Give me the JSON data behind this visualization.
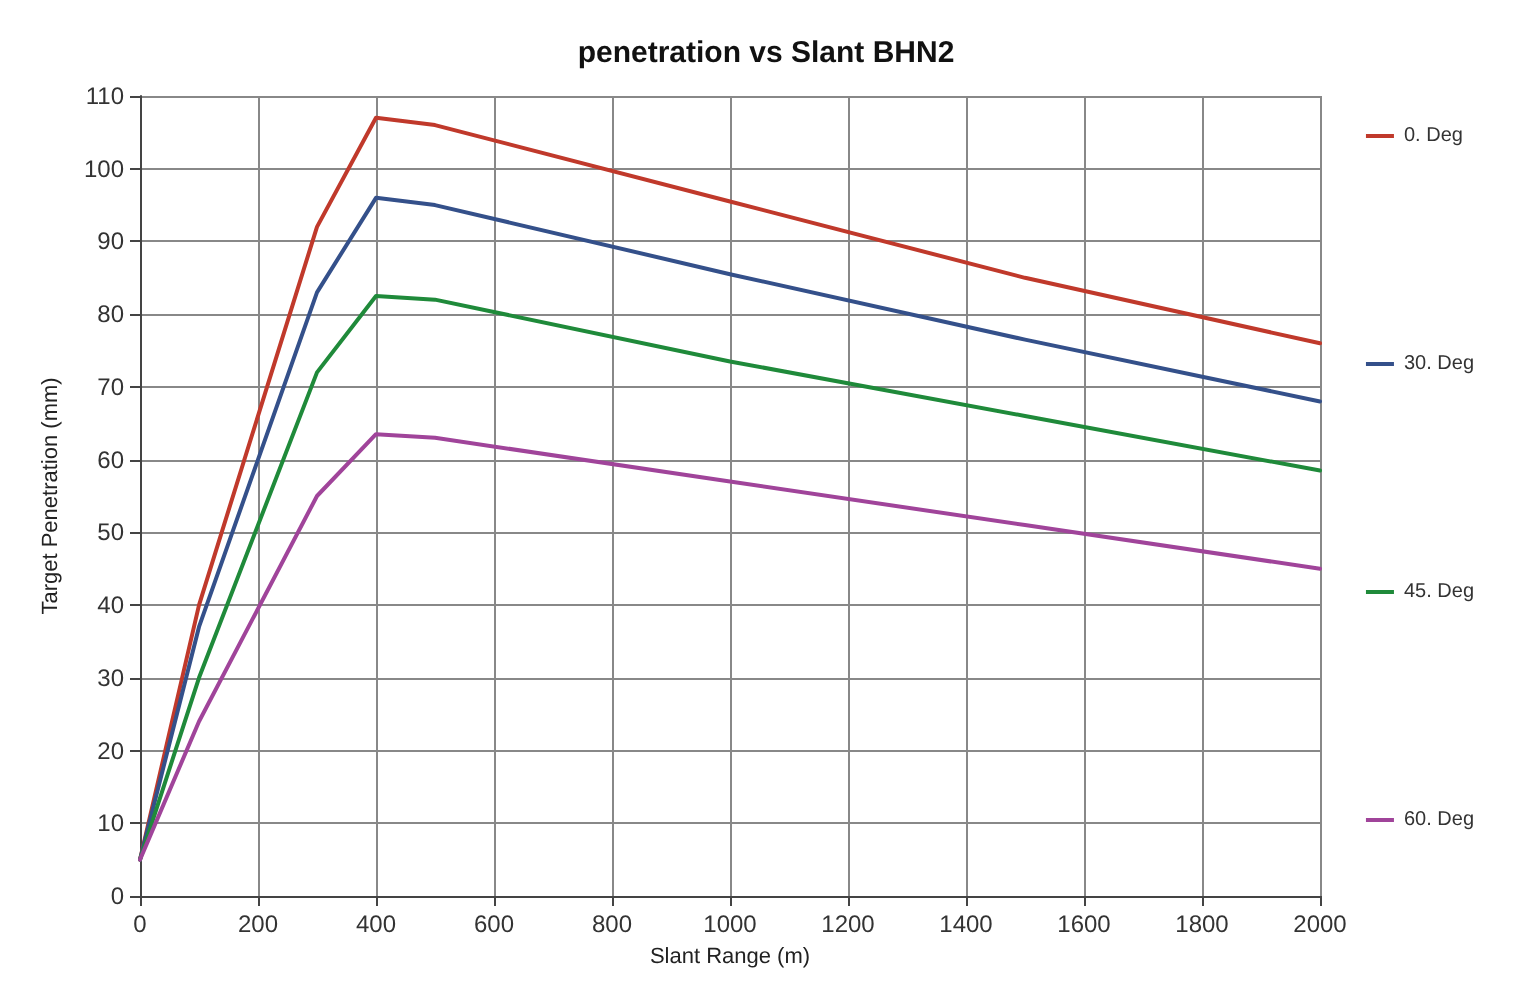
{
  "chart_data": {
    "type": "line",
    "title": "penetration vs Slant BHN2",
    "xlabel": "Slant Range (m)",
    "ylabel": "Target Penetration (mm)",
    "x": [
      0,
      100,
      300,
      400,
      500,
      1000,
      1500,
      2000
    ],
    "series": [
      {
        "name": "0. Deg",
        "color": "#c0392b",
        "values": [
          5,
          40,
          92,
          107,
          106,
          95.5,
          85,
          76
        ]
      },
      {
        "name": "30. Deg",
        "color": "#34508a",
        "values": [
          5,
          37,
          83,
          96,
          95,
          85.5,
          76.5,
          68
        ]
      },
      {
        "name": "45. Deg",
        "color": "#1f8a3a",
        "values": [
          5,
          30,
          72,
          82.5,
          82,
          73.5,
          66,
          58.5
        ]
      },
      {
        "name": "60. Deg",
        "color": "#a0449a",
        "values": [
          5,
          24,
          55,
          63.5,
          63,
          57,
          51,
          45
        ]
      }
    ],
    "xlim": [
      0,
      2000
    ],
    "xticks": [
      0,
      200,
      400,
      600,
      800,
      1000,
      1200,
      1400,
      1600,
      1800,
      2000
    ],
    "ylim": [
      0,
      110
    ],
    "yticks": [
      0,
      10,
      20,
      30,
      40,
      50,
      60,
      70,
      80,
      90,
      100,
      110
    ],
    "grid": true,
    "legend": "right",
    "marker": "none",
    "line_style": "solid"
  }
}
